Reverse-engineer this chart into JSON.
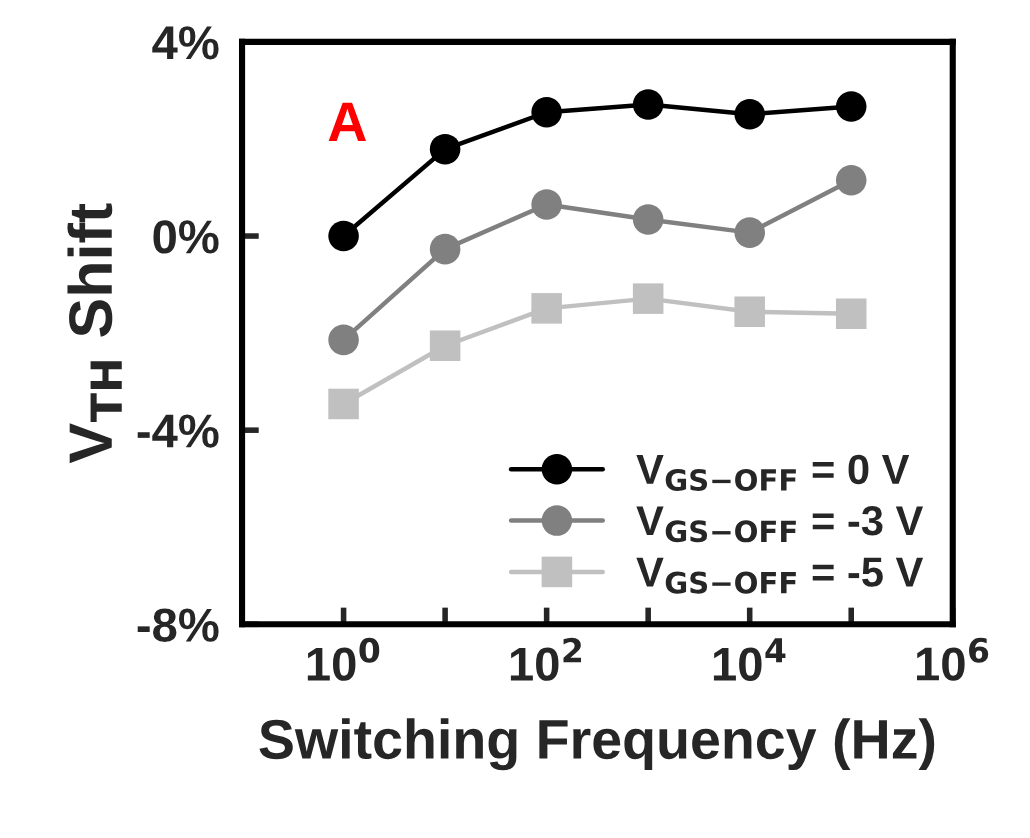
{
  "chart_data": {
    "type": "line",
    "xlabel": "Switching Frequency (Hz)",
    "ylabel": "V$_{TH}$ Shift",
    "x": [
      1,
      10,
      100,
      1000,
      10000,
      100000
    ],
    "series": [
      {
        "name": "V$_{GS−OFF}$ = 0 V",
        "color": "#000000",
        "marker": "circle",
        "values": [
          0.0,
          1.79,
          2.55,
          2.71,
          2.51,
          2.67
        ]
      },
      {
        "name": "V$_{GS−OFF}$ = -3 V",
        "color": "#808080",
        "marker": "circle",
        "values": [
          -2.14,
          -0.27,
          0.65,
          0.34,
          0.07,
          1.15
        ]
      },
      {
        "name": "V$_{GS−OFF}$ = -5 V",
        "color": "#c0c0c0",
        "marker": "square",
        "values": [
          -3.46,
          -2.26,
          -1.49,
          -1.29,
          -1.56,
          -1.6
        ]
      }
    ],
    "log": "x",
    "xlim": [
      0.1,
      1000000
    ],
    "xticks": [
      {
        "value": 1,
        "label": "10$^{0}$"
      },
      {
        "value": 10,
        "label": null
      },
      {
        "value": 100,
        "label": "10$^{2}$"
      },
      {
        "value": 1000,
        "label": null
      },
      {
        "value": 10000,
        "label": "10$^{4}$"
      },
      {
        "value": 100000,
        "label": null
      },
      {
        "value": 1000000,
        "label": "10$^{6}$"
      }
    ],
    "ylim": [
      -8,
      4
    ],
    "yticks": [
      {
        "value": 4,
        "label": "4%"
      },
      {
        "value": 0,
        "label": "0%"
      },
      {
        "value": -4,
        "label": "-4%"
      },
      {
        "value": -8,
        "label": "-8%"
      }
    ],
    "annotations": [
      "A"
    ],
    "legend": "bottom right",
    "grid": false
  }
}
